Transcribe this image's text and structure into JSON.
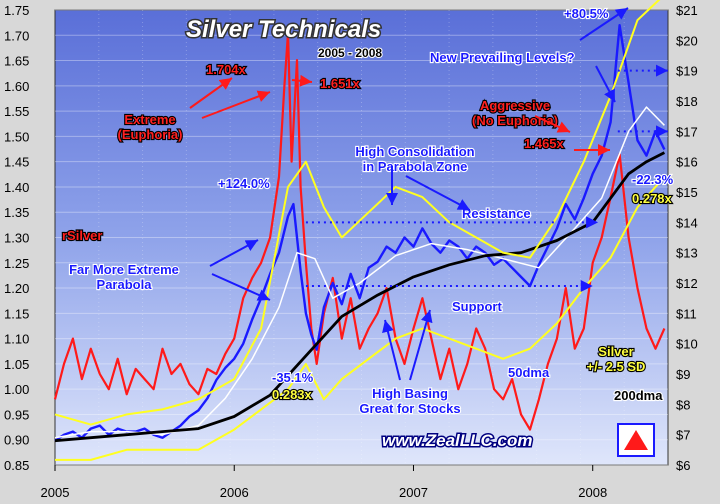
{
  "chart_data": {
    "type": "line",
    "title": "Silver Technicals",
    "subtitle": "2005 - 2008",
    "x_labels": [
      "2005",
      "2006",
      "2007",
      "2008"
    ],
    "left_axis": {
      "min": 0.85,
      "max": 1.75,
      "ticks": [
        "0.85",
        "0.90",
        "0.95",
        "1.00",
        "1.05",
        "1.10",
        "1.15",
        "1.20",
        "1.25",
        "1.30",
        "1.35",
        "1.40",
        "1.45",
        "1.50",
        "1.55",
        "1.60",
        "1.65",
        "1.70",
        "1.75"
      ]
    },
    "right_axis": {
      "min": 6,
      "max": 21,
      "ticks": [
        "$6",
        "$7",
        "$8",
        "$9",
        "$10",
        "$11",
        "$12",
        "$13",
        "$14",
        "$15",
        "$16",
        "$17",
        "$18",
        "$19",
        "$20",
        "$21"
      ]
    },
    "x_range": [
      2005.0,
      2008.42
    ],
    "series": [
      {
        "name": "rSilver",
        "color": "#ff1a1a",
        "x": [
          2005.0,
          2005.05,
          2005.1,
          2005.15,
          2005.2,
          2005.25,
          2005.3,
          2005.35,
          2005.4,
          2005.45,
          2005.5,
          2005.55,
          2005.6,
          2005.65,
          2005.7,
          2005.75,
          2005.8,
          2005.85,
          2005.9,
          2005.95,
          2006.0,
          2006.05,
          2006.1,
          2006.15,
          2006.2,
          2006.25,
          2006.28,
          2006.3,
          2006.32,
          2006.35,
          2006.37,
          2006.4,
          2006.43,
          2006.46,
          2006.5,
          2006.55,
          2006.6,
          2006.65,
          2006.7,
          2006.75,
          2006.8,
          2006.85,
          2006.9,
          2006.95,
          2007.0,
          2007.05,
          2007.1,
          2007.15,
          2007.2,
          2007.25,
          2007.3,
          2007.35,
          2007.4,
          2007.45,
          2007.5,
          2007.55,
          2007.6,
          2007.65,
          2007.7,
          2007.75,
          2007.8,
          2007.85,
          2007.9,
          2007.95,
          2008.0,
          2008.05,
          2008.1,
          2008.15,
          2008.2,
          2008.25,
          2008.3,
          2008.35,
          2008.4
        ],
        "y": [
          0.98,
          1.05,
          1.1,
          1.02,
          1.08,
          1.03,
          1.0,
          1.06,
          0.99,
          1.04,
          1.02,
          1.0,
          1.08,
          1.03,
          1.05,
          1.01,
          0.99,
          1.04,
          1.03,
          1.07,
          1.1,
          1.18,
          1.22,
          1.25,
          1.3,
          1.42,
          1.6,
          1.704,
          1.45,
          1.651,
          1.4,
          1.25,
          1.12,
          1.05,
          1.15,
          1.22,
          1.1,
          1.18,
          1.08,
          1.12,
          1.15,
          1.2,
          1.1,
          1.05,
          1.12,
          1.18,
          1.1,
          1.02,
          1.08,
          1.0,
          1.05,
          1.12,
          1.08,
          1.0,
          0.98,
          1.02,
          0.95,
          0.92,
          0.98,
          1.05,
          1.1,
          1.2,
          1.08,
          1.12,
          1.25,
          1.3,
          1.38,
          1.465,
          1.3,
          1.2,
          1.12,
          1.08,
          1.12
        ]
      },
      {
        "name": "Silver",
        "color": "#1a1aff",
        "x": [
          2005.0,
          2005.05,
          2005.1,
          2005.15,
          2005.2,
          2005.25,
          2005.3,
          2005.35,
          2005.4,
          2005.45,
          2005.5,
          2005.55,
          2005.6,
          2005.65,
          2005.7,
          2005.75,
          2005.8,
          2005.85,
          2005.9,
          2005.95,
          2006.0,
          2006.05,
          2006.1,
          2006.15,
          2006.2,
          2006.25,
          2006.3,
          2006.33,
          2006.37,
          2006.4,
          2006.43,
          2006.46,
          2006.5,
          2006.55,
          2006.6,
          2006.65,
          2006.7,
          2006.75,
          2006.8,
          2006.85,
          2006.9,
          2006.95,
          2007.0,
          2007.05,
          2007.1,
          2007.15,
          2007.2,
          2007.25,
          2007.3,
          2007.35,
          2007.4,
          2007.45,
          2007.5,
          2007.55,
          2007.6,
          2007.65,
          2007.7,
          2007.75,
          2007.8,
          2007.85,
          2007.9,
          2007.95,
          2008.0,
          2008.05,
          2008.1,
          2008.15,
          2008.2,
          2008.25,
          2008.3,
          2008.35,
          2008.4
        ],
        "y": [
          6.8,
          7.0,
          7.1,
          6.9,
          7.2,
          7.3,
          7.0,
          7.2,
          7.1,
          7.1,
          7.2,
          7.0,
          6.9,
          7.1,
          7.3,
          7.6,
          7.8,
          8.2,
          8.8,
          9.2,
          9.5,
          10.0,
          10.8,
          11.5,
          12.3,
          13.0,
          14.2,
          14.6,
          12.4,
          11.0,
          10.3,
          9.8,
          11.2,
          12.0,
          11.3,
          12.3,
          11.5,
          12.5,
          12.7,
          13.2,
          13.0,
          13.5,
          13.2,
          13.8,
          13.3,
          13.0,
          13.4,
          13.2,
          12.8,
          13.2,
          13.0,
          12.6,
          12.8,
          12.5,
          12.2,
          11.9,
          12.6,
          13.2,
          13.8,
          14.6,
          14.1,
          14.8,
          15.6,
          16.2,
          17.3,
          20.5,
          18.6,
          16.7,
          16.2,
          17.0,
          16.4
        ]
      },
      {
        "name": "50dma",
        "color": "#ffffff",
        "x": [
          2005.0,
          2005.2,
          2005.4,
          2005.6,
          2005.8,
          2005.95,
          2006.1,
          2006.25,
          2006.35,
          2006.45,
          2006.55,
          2006.7,
          2006.9,
          2007.1,
          2007.3,
          2007.5,
          2007.7,
          2007.9,
          2008.05,
          2008.2,
          2008.3,
          2008.4
        ],
        "y": [
          6.9,
          7.1,
          7.1,
          7.0,
          7.3,
          8.2,
          9.5,
          11.2,
          13.0,
          12.8,
          11.5,
          12.0,
          12.9,
          13.3,
          13.1,
          12.8,
          12.5,
          13.8,
          14.8,
          17.0,
          17.8,
          17.2
        ]
      },
      {
        "name": "200dma",
        "color": "#000000",
        "x": [
          2005.0,
          2005.2,
          2005.4,
          2005.6,
          2005.8,
          2006.0,
          2006.2,
          2006.4,
          2006.6,
          2006.8,
          2007.0,
          2007.2,
          2007.4,
          2007.6,
          2007.8,
          2008.0,
          2008.2,
          2008.3,
          2008.4
        ],
        "y": [
          6.8,
          6.9,
          7.0,
          7.1,
          7.2,
          7.6,
          8.3,
          9.6,
          10.9,
          11.6,
          12.2,
          12.6,
          12.9,
          13.0,
          13.4,
          14.0,
          15.6,
          16.0,
          16.3
        ]
      },
      {
        "name": "Upper band",
        "color": "#ffff20",
        "x": [
          2005.0,
          2005.2,
          2005.4,
          2005.6,
          2005.8,
          2006.0,
          2006.15,
          2006.3,
          2006.4,
          2006.5,
          2006.6,
          2006.75,
          2006.9,
          2007.05,
          2007.2,
          2007.35,
          2007.5,
          2007.65,
          2007.8,
          2007.95,
          2008.1,
          2008.25,
          2008.4
        ],
        "y": [
          0.95,
          0.93,
          0.95,
          0.96,
          0.98,
          1.02,
          1.12,
          1.4,
          1.45,
          1.36,
          1.3,
          1.35,
          1.4,
          1.38,
          1.33,
          1.3,
          1.27,
          1.26,
          1.34,
          1.45,
          1.58,
          1.73,
          1.78
        ]
      },
      {
        "name": "Lower band",
        "color": "#ffff20",
        "x": [
          2005.0,
          2005.2,
          2005.4,
          2005.6,
          2005.8,
          2006.0,
          2006.15,
          2006.3,
          2006.4,
          2006.5,
          2006.6,
          2006.75,
          2006.9,
          2007.05,
          2007.2,
          2007.35,
          2007.5,
          2007.65,
          2007.8,
          2007.95,
          2008.1,
          2008.25,
          2008.4
        ],
        "y": [
          0.86,
          0.86,
          0.88,
          0.88,
          0.88,
          0.92,
          0.96,
          1.0,
          1.05,
          0.98,
          1.02,
          1.06,
          1.1,
          1.12,
          1.1,
          1.08,
          1.06,
          1.08,
          1.13,
          1.2,
          1.26,
          1.36,
          1.42
        ]
      }
    ],
    "annotations": {
      "extreme": "Extreme\n(Euphoria)",
      "v1704": "1.704x",
      "v1651": "1.651x",
      "far_more": "Far More Extreme\nParabola",
      "rsilver": "rSilver",
      "pct124": "+124.0%",
      "high_consol": "High Consolidation\nin Parabola Zone",
      "resistance": "Resistance",
      "support": "Support",
      "new_levels": "New Prevailing Levels?",
      "pct80": "+80.5%",
      "aggressive": "Aggressive\n(No Euphoria)",
      "v1465": "1.465x",
      "neg223": "-22.3%",
      "v0278": "0.278x",
      "neg351": "-35.1%",
      "v0283": "0.283x",
      "high_basing": "High Basing\nGreat for Stocks",
      "dma50": "50dma",
      "silver_sd": "Silver\n+/- 2.5 SD",
      "dma200": "200dma",
      "url": "www.ZealLLC.com"
    }
  }
}
